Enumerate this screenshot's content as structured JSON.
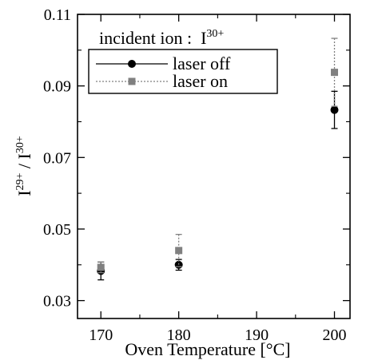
{
  "chart_data": {
    "type": "scatter",
    "title": "",
    "xlabel": "Oven Temperature [°C]",
    "ylabel": "I29+ / I30+",
    "ylabel_parts": {
      "base1": "I",
      "sup1": "29+",
      "sep": " / ",
      "base2": "I",
      "sup2": "30+"
    },
    "xlim": [
      167,
      202
    ],
    "ylim": [
      0.025,
      0.11
    ],
    "x_ticks": [
      170,
      180,
      190,
      200
    ],
    "y_ticks": [
      0.03,
      0.05,
      0.07,
      0.09,
      0.11
    ],
    "y_tick_labels": [
      "0.03",
      "0.05",
      "0.07",
      "0.09",
      "0.11"
    ],
    "grid": false,
    "legend": {
      "placement": "top-left",
      "header_text": "incident ion :  I",
      "header_sup": "30+"
    },
    "series": [
      {
        "name": "laser off",
        "color": "#000000",
        "marker": "circle",
        "line_style": "solid",
        "points": [
          {
            "x": 170,
            "y": 0.0383,
            "err": 0.0025
          },
          {
            "x": 180,
            "y": 0.04,
            "err": 0.0015
          },
          {
            "x": 200,
            "y": 0.0833,
            "err": 0.0052
          }
        ]
      },
      {
        "name": "laser on",
        "color": "#808080",
        "marker": "square",
        "line_style": "dotted",
        "points": [
          {
            "x": 170,
            "y": 0.0393,
            "err": 0.0015
          },
          {
            "x": 180,
            "y": 0.044,
            "err": 0.0045
          },
          {
            "x": 200,
            "y": 0.0938,
            "err": 0.0095
          }
        ]
      }
    ]
  }
}
